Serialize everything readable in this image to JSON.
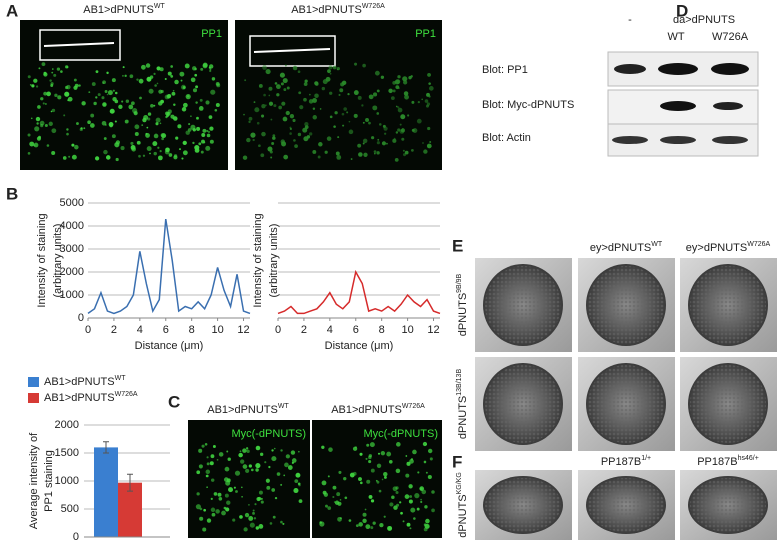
{
  "panels": {
    "a": {
      "label": "A",
      "titles": [
        {
          "base": "AB1>dPNUTS",
          "sup": "WT"
        },
        {
          "base": "AB1>dPNUTS",
          "sup": "W726A"
        }
      ],
      "stain": [
        "PP1",
        "PP1"
      ]
    },
    "b": {
      "label": "B"
    },
    "c": {
      "label": "C",
      "titles": [
        {
          "base": "AB1>dPNUTS",
          "sup": "WT"
        },
        {
          "base": "AB1>dPNUTS",
          "sup": "W726A"
        }
      ],
      "stain": [
        "Myc(-dPNUTS)",
        "Myc(-dPNUTS)"
      ]
    },
    "d": {
      "label": "D",
      "columns": [
        "-",
        "da>dPNUTS",
        "WT",
        "W726A"
      ],
      "blots": [
        "Blot: PP1",
        "Blot: Myc-dPNUTS",
        "Blot: Actin"
      ]
    },
    "e": {
      "label": "E",
      "columns": [
        {
          "base": "ey>dPNUTS",
          "sup": "WT"
        },
        {
          "base": "ey>dPNUTS",
          "sup": "W726A"
        }
      ],
      "rows": [
        {
          "base": "dPNUTS",
          "sup": "9B/9B"
        },
        {
          "base": "dPNUTS",
          "sup": "13B/13B"
        }
      ]
    },
    "f": {
      "label": "F",
      "columns": [
        {
          "base": "PP187B",
          "sup": "1/+"
        },
        {
          "base": "PP187B",
          "sup": "hs46/+"
        }
      ],
      "rows": [
        {
          "base": "dPNUTS",
          "sup": "KG/KG"
        }
      ]
    }
  },
  "chart_data": [
    {
      "type": "line",
      "ylabel": [
        "Intensity of staining",
        "(arbitrary units)"
      ],
      "xlabel": "Distance (μm)",
      "x": [
        0,
        0.5,
        1,
        1.5,
        2,
        2.5,
        3,
        3.5,
        4,
        4.5,
        5,
        5.5,
        6,
        6.5,
        7,
        7.5,
        8,
        8.5,
        9,
        9.5,
        10,
        10.5,
        11,
        11.5,
        12,
        12.5
      ],
      "series": [
        {
          "color": "#3a6fb0",
          "values": [
            200,
            400,
            1100,
            300,
            200,
            300,
            500,
            1000,
            2900,
            1500,
            300,
            800,
            4300,
            2500,
            300,
            500,
            400,
            700,
            400,
            1000,
            2200,
            1200,
            500,
            1900,
            300,
            200
          ]
        }
      ],
      "xlim": [
        0,
        12.5
      ],
      "xticks": [
        0,
        2,
        4,
        6,
        8,
        10,
        12
      ],
      "ylim": [
        0,
        5000
      ],
      "yticks": [
        0,
        1000,
        2000,
        3000,
        4000,
        5000
      ],
      "grid": true,
      "ytick_labels": true
    },
    {
      "type": "line",
      "ylabel": [
        "Intensity of staining",
        "(arbitrary units)"
      ],
      "xlabel": "Distance (μm)",
      "x": [
        0,
        0.5,
        1,
        1.5,
        2,
        2.5,
        3,
        3.5,
        4,
        4.5,
        5,
        5.5,
        6,
        6.5,
        7,
        7.5,
        8,
        8.5,
        9,
        9.5,
        10,
        10.5,
        11,
        11.5,
        12,
        12.5
      ],
      "series": [
        {
          "color": "#d62b2b",
          "values": [
            200,
            300,
            500,
            200,
            200,
            300,
            400,
            700,
            1100,
            600,
            400,
            700,
            2000,
            1500,
            300,
            400,
            300,
            500,
            300,
            600,
            1000,
            700,
            500,
            800,
            300,
            200
          ]
        }
      ],
      "xlim": [
        0,
        12.5
      ],
      "xticks": [
        0,
        2,
        4,
        6,
        8,
        10,
        12
      ],
      "ylim": [
        0,
        5000
      ],
      "yticks": [
        0,
        1000,
        2000,
        3000,
        4000,
        5000
      ],
      "grid": true,
      "ytick_labels": false
    },
    {
      "type": "bar",
      "ylabel": [
        "Average intensity of",
        "PP1 staining"
      ],
      "series": [
        {
          "name": "AB1>dPNUTS",
          "name_sup": "WT",
          "color": "#3a7fd0",
          "values": [
            1600
          ],
          "errors": [
            100
          ]
        },
        {
          "name": "AB1>dPNUTS",
          "name_sup": "W726A",
          "color": "#d63a35",
          "values": [
            970
          ],
          "errors": [
            150
          ]
        }
      ],
      "ylim": [
        0,
        2000
      ],
      "yticks": [
        0,
        500,
        1000,
        1500,
        2000
      ],
      "grid": true
    }
  ]
}
